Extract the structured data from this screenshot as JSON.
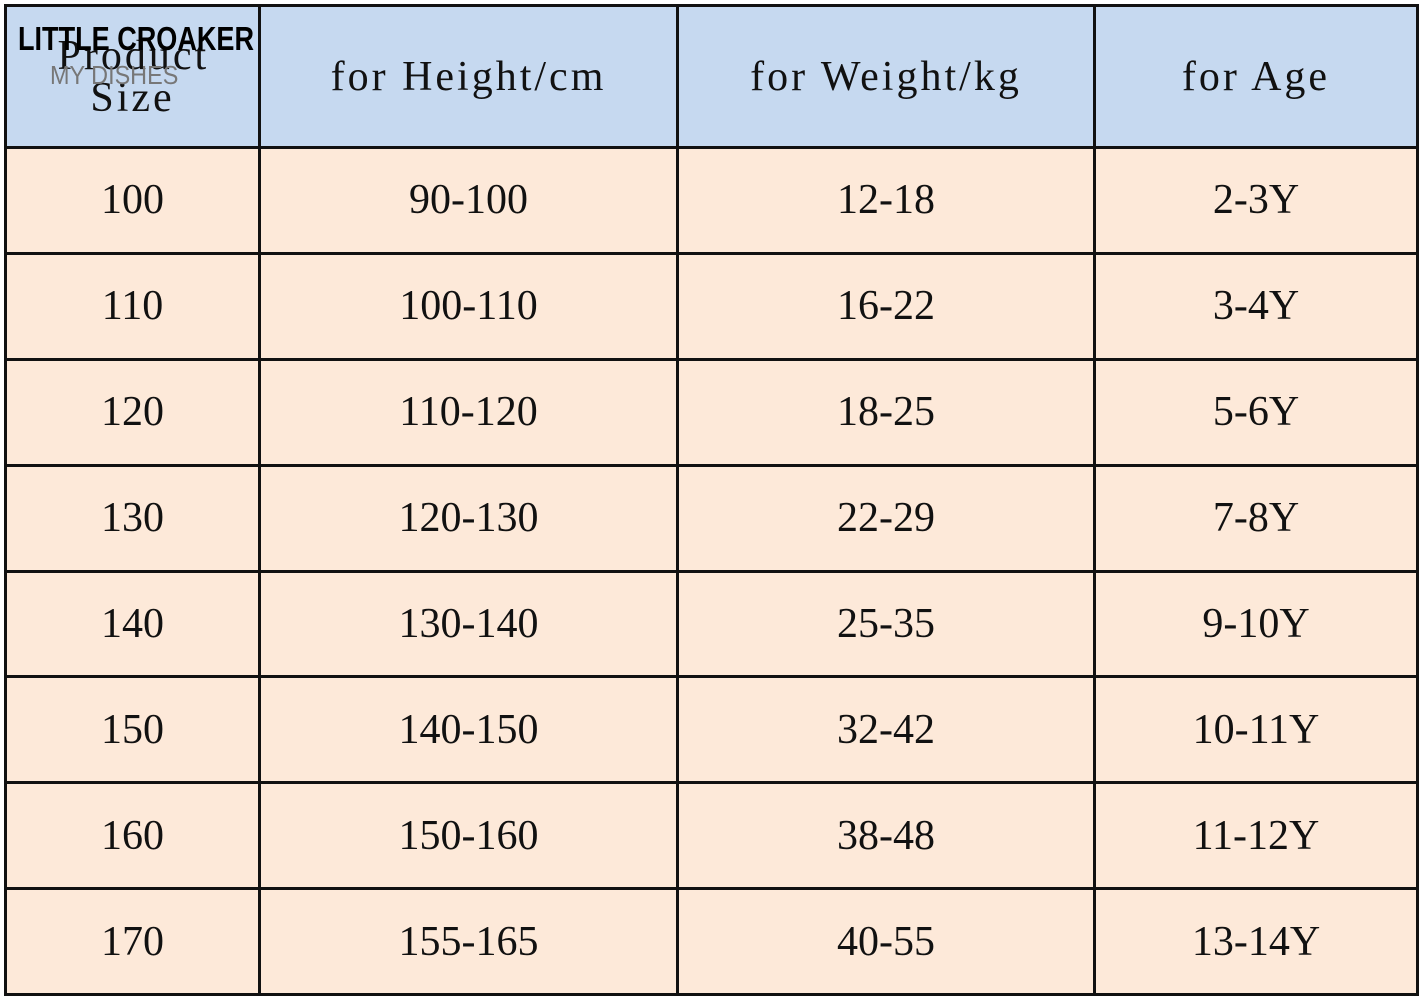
{
  "watermark": {
    "brand": "LITTLE CROAKER",
    "sub": "MY DISHES"
  },
  "table": {
    "header": [
      "Product Size",
      "for Height/cm",
      "for Weight/kg",
      "for Age"
    ],
    "rows": [
      [
        "100",
        "90-100",
        "12-18",
        "2-3Y"
      ],
      [
        "110",
        "100-110",
        "16-22",
        "3-4Y"
      ],
      [
        "120",
        "110-120",
        "18-25",
        "5-6Y"
      ],
      [
        "130",
        "120-130",
        "22-29",
        "7-8Y"
      ],
      [
        "140",
        "130-140",
        "25-35",
        "9-10Y"
      ],
      [
        "150",
        "140-150",
        "32-42",
        "10-11Y"
      ],
      [
        "160",
        "150-160",
        "38-48",
        "11-12Y"
      ],
      [
        "170",
        "155-165",
        "40-55",
        "13-14Y"
      ]
    ]
  }
}
